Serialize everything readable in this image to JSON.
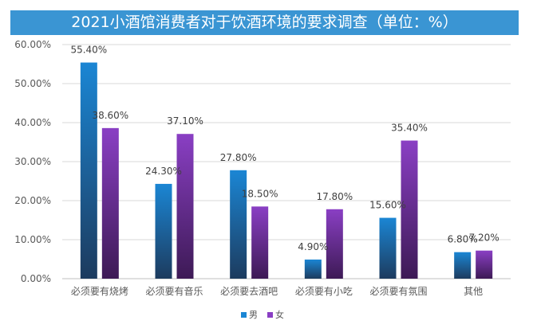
{
  "title": "2021小酒馆消费者对于饮酒环境的要求调查（单位：%）",
  "colors": {
    "title_bg": "#3a95d3",
    "male_top": "#1b86d4",
    "male_bottom": "#1c3b5e",
    "female_top": "#8a3fc4",
    "female_bottom": "#3d1a55"
  },
  "chart_data": {
    "type": "bar",
    "categories": [
      "必须要有烧烤",
      "必须要有音乐",
      "必须要去酒吧",
      "必须要有小吃",
      "必须要有氛围",
      "其他"
    ],
    "series": [
      {
        "name": "男",
        "values": [
          55.4,
          24.3,
          27.8,
          4.9,
          15.6,
          6.8
        ],
        "labels": [
          "55.40%",
          "24.30%",
          "27.80%",
          "4.90%",
          "15.60%",
          "6.80%"
        ]
      },
      {
        "name": "女",
        "values": [
          38.6,
          37.1,
          18.5,
          17.8,
          35.4,
          7.2
        ],
        "labels": [
          "38.60%",
          "37.10%",
          "18.50%",
          "17.80%",
          "35.40%",
          "7.20%"
        ]
      }
    ],
    "ylim": [
      0,
      60
    ],
    "yticks": [
      "0.00%",
      "10.00%",
      "20.00%",
      "30.00%",
      "40.00%",
      "50.00%",
      "60.00%"
    ],
    "grid": true,
    "legend_position": "bottom"
  }
}
